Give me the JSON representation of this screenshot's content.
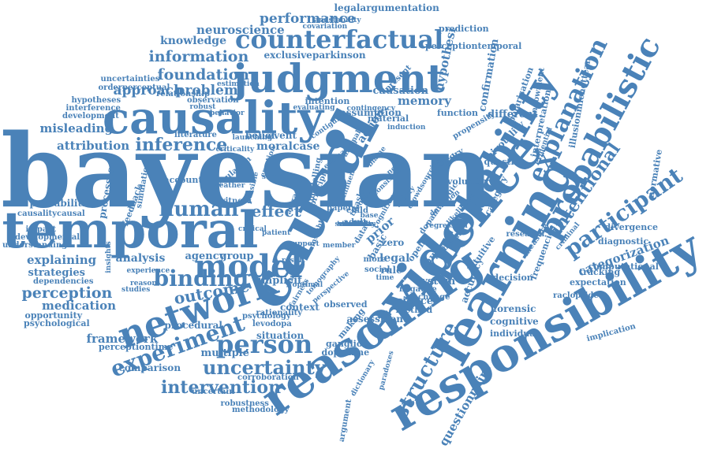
{
  "color": "#4a82b8",
  "words": [
    "bayesian",
    "causal",
    "causality",
    "evidence",
    "temporal",
    "judgment",
    "learning",
    "responsibility",
    "probability",
    "reasoning",
    "counterfactual",
    "network",
    "model",
    "probabilistic",
    "explanation",
    "person",
    "experiment",
    "binding",
    "human",
    "uncertainty",
    "intervention",
    "structure",
    "participant",
    "inference",
    "information",
    "foundation",
    "attribution",
    "performance",
    "neuroscience",
    "perception",
    "approach",
    "problem",
    "outcome",
    "effect",
    "knowledge",
    "misleading",
    "framework",
    "memory",
    "causation",
    "hypothesi",
    "confirmation",
    "intentional",
    "categorization",
    "action",
    "moral",
    "case",
    "event",
    "belief",
    "medication",
    "explaining",
    "strategies",
    "analysis",
    "legal",
    "system",
    "science",
    "cause",
    "prior",
    "theory",
    "different",
    "pivotality",
    "function",
    "question",
    "category",
    "expectation",
    "decision",
    "cognitive",
    "forensic",
    "individual",
    "agency",
    "group",
    "implicit",
    "context",
    "situation",
    "dopamine",
    "ganglion",
    "questionnaire",
    "legalargumentation",
    "perceptiontemporal",
    "probabilities",
    "causalitycausal",
    "processes",
    "account",
    "witness",
    "impact",
    "developmental",
    "understanding",
    "dependencies",
    "opportunity",
    "psychological",
    "perceptiontime",
    "comparison",
    "procedural",
    "multiple",
    "uncertain",
    "robustness",
    "methodology",
    "corroboration",
    "psychology",
    "levodopa",
    "rationality",
    "observed",
    "making",
    "assessment",
    "method",
    "negative",
    "change",
    "tracking",
    "computational",
    "diagnostic",
    "divergence",
    "normative",
    "illusionmichottean",
    "interpretation",
    "frequencies",
    "research",
    "measure",
    "raclopride",
    "implication",
    "polarisation",
    "endowment",
    "propensity",
    "voluntary",
    "accuracy",
    "intuitive",
    "prediction",
    "covariation",
    "andstability",
    "relationship",
    "uncertainties",
    "orderperceptual",
    "hypotheses",
    "interference",
    "development",
    "simulation",
    "feedback",
    "exclusive",
    "parkinson",
    "intention",
    "assumption",
    "material",
    "present",
    "induction",
    "observation",
    "literature",
    "launching",
    "criticality",
    "emotion",
    "modelling",
    "sampling",
    "regulation",
    "weather",
    "possible",
    "averaging",
    "principle",
    "paper",
    "child",
    "task",
    "bias",
    "adult",
    "data",
    "base",
    "basic",
    "zero",
    "rule",
    "open",
    "more",
    "social",
    "time",
    "result",
    "insight",
    "support",
    "patient",
    "critical",
    "robust",
    "behavior",
    "contingency",
    "theoretical",
    "consistent",
    "evaluation",
    "blame",
    "norm",
    "reason",
    "studies",
    "insights",
    "experience",
    "estimation",
    "evaluating",
    "argument",
    "paradoxes",
    "dictionary",
    "crowdsourcing",
    "dopaminergic",
    "regression",
    "ambiguity",
    "deviation",
    "evidential",
    "criminal",
    "fairness",
    "optimal",
    "tomography",
    "perspective",
    "number",
    "member",
    "influence",
    "likelihood",
    "contiguity",
    "anomaly",
    "cognition",
    "ability",
    "neuronal",
    "belief",
    "tractable",
    "metric",
    "variable",
    "stimulus",
    "sensitivity"
  ]
}
